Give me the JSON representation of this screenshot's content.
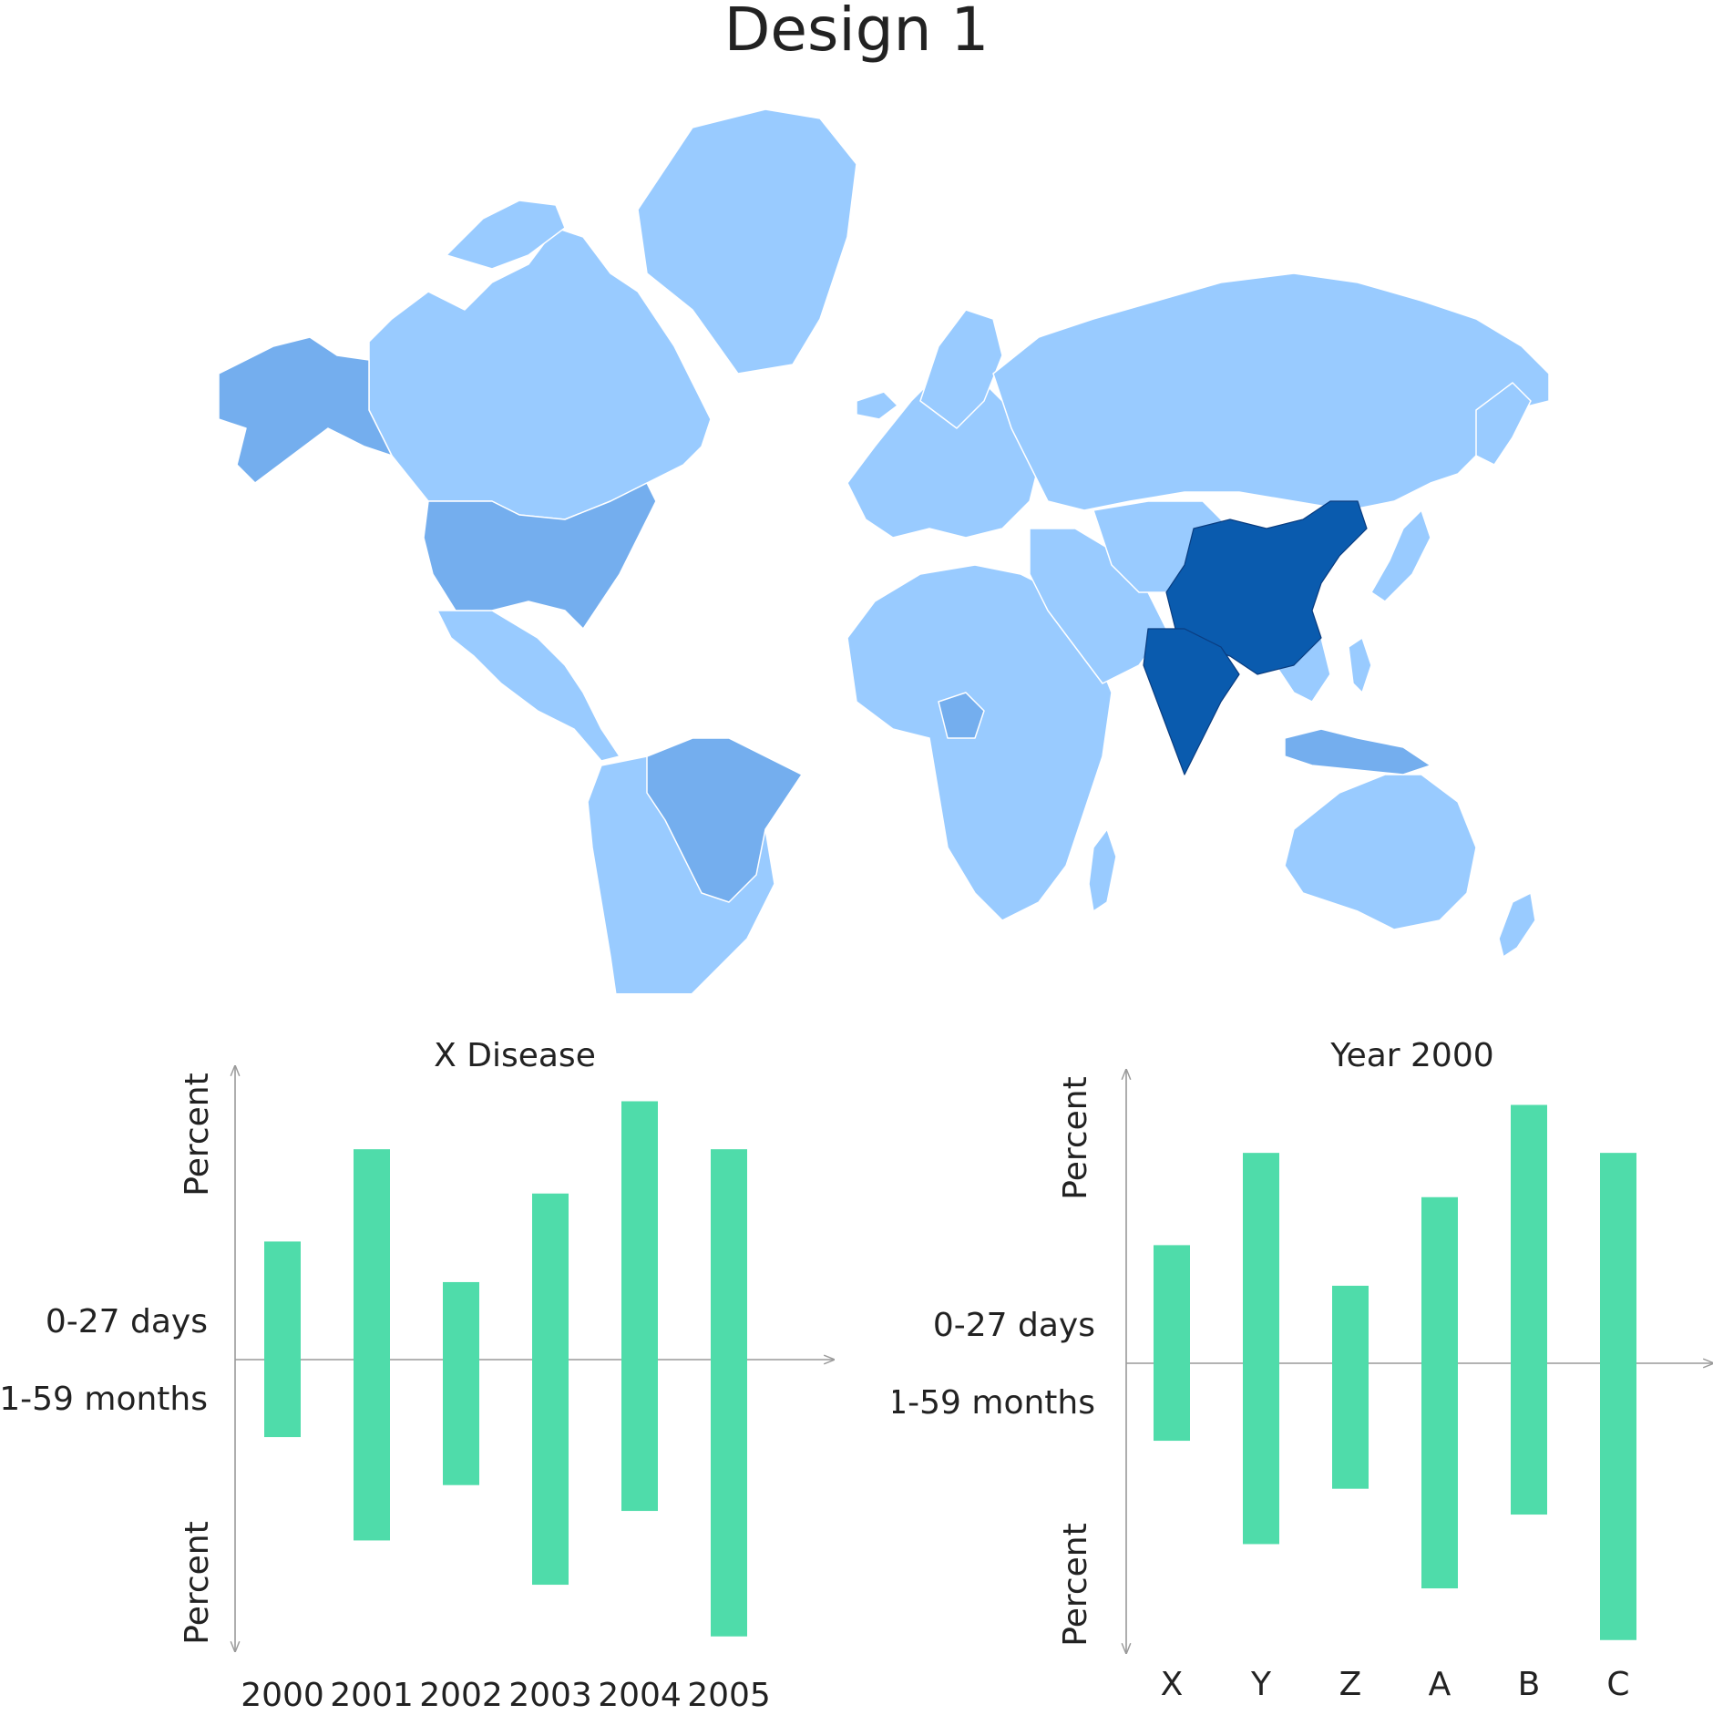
{
  "page": {
    "title": "Design 1"
  },
  "map": {
    "colors": {
      "ocean": "#ffffff",
      "land_base": "#99cbff",
      "land_mid": "#74aeee",
      "land_high": "#0a5bae",
      "border": "#ffffff"
    },
    "highlighted_regions": [
      {
        "name": "China",
        "level": "high"
      },
      {
        "name": "India",
        "level": "high"
      },
      {
        "name": "Mongolia",
        "level": "high"
      },
      {
        "name": "United States",
        "level": "mid"
      },
      {
        "name": "Alaska",
        "level": "mid"
      },
      {
        "name": "Brazil",
        "level": "mid"
      },
      {
        "name": "Nigeria",
        "level": "mid"
      },
      {
        "name": "Indonesia",
        "level": "mid"
      }
    ]
  },
  "chart_data": [
    {
      "type": "bar",
      "title": "X Disease",
      "categories": [
        "2000",
        "2001",
        "2002",
        "2003",
        "2004",
        "2005"
      ],
      "series": [
        {
          "name": "0-27 days",
          "values": [
            32,
            57,
            21,
            45,
            70,
            57
          ]
        },
        {
          "name": "1-59 months",
          "values": [
            21,
            49,
            34,
            61,
            41,
            75
          ]
        }
      ],
      "ylabel_top": "Percent",
      "ylabel_bottom": "Percent",
      "ylim": [
        -80,
        80
      ],
      "bar_color": "#4fdcaa",
      "axis_color": "#9a9a9a",
      "legend": "left"
    },
    {
      "type": "bar",
      "title": "Year 2000",
      "categories": [
        "X",
        "Y",
        "Z",
        "A",
        "B",
        "C"
      ],
      "series": [
        {
          "name": "0-27 days",
          "values": [
            32,
            57,
            21,
            45,
            70,
            57
          ]
        },
        {
          "name": "1-59 months",
          "values": [
            21,
            49,
            34,
            61,
            41,
            75
          ]
        }
      ],
      "ylabel_top": "Percent",
      "ylabel_bottom": "Percent",
      "ylim": [
        -80,
        80
      ],
      "bar_color": "#4fdcaa",
      "axis_color": "#9a9a9a",
      "legend": "left"
    }
  ]
}
